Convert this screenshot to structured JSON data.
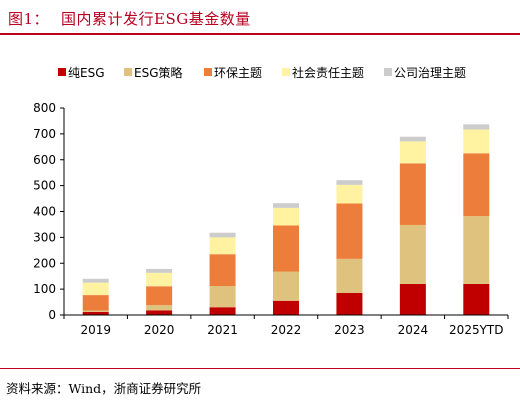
{
  "figure": {
    "label": "图1：",
    "title": "国内累计发行ESG基金数量",
    "source": "资料来源：Wind，浙商证券研究所"
  },
  "colors": {
    "accent": "#b8001f"
  },
  "chart_data": {
    "type": "bar",
    "stacked": true,
    "title": "",
    "xlabel": "",
    "ylabel": "",
    "categories": [
      "2019",
      "2020",
      "2021",
      "2022",
      "2023",
      "2024",
      "2025YTD"
    ],
    "ylim": [
      0,
      800
    ],
    "yticks": [
      0,
      100,
      200,
      300,
      400,
      500,
      600,
      700,
      800
    ],
    "grid": false,
    "legend_position": "top",
    "series": [
      {
        "name": "纯ESG",
        "color": "#c00000",
        "values": [
          12,
          18,
          30,
          55,
          85,
          120,
          120
        ]
      },
      {
        "name": "ESG策略",
        "color": "#dfc27d",
        "values": [
          5,
          20,
          82,
          113,
          132,
          228,
          262
        ]
      },
      {
        "name": "环保主题",
        "color": "#ed7d3b",
        "values": [
          60,
          73,
          123,
          178,
          214,
          238,
          243
        ]
      },
      {
        "name": "社会责任主题",
        "color": "#fff2a0",
        "values": [
          48,
          52,
          65,
          68,
          72,
          85,
          92
        ]
      },
      {
        "name": "公司治理主题",
        "color": "#cccccc",
        "values": [
          15,
          15,
          18,
          18,
          18,
          18,
          20
        ]
      }
    ]
  }
}
